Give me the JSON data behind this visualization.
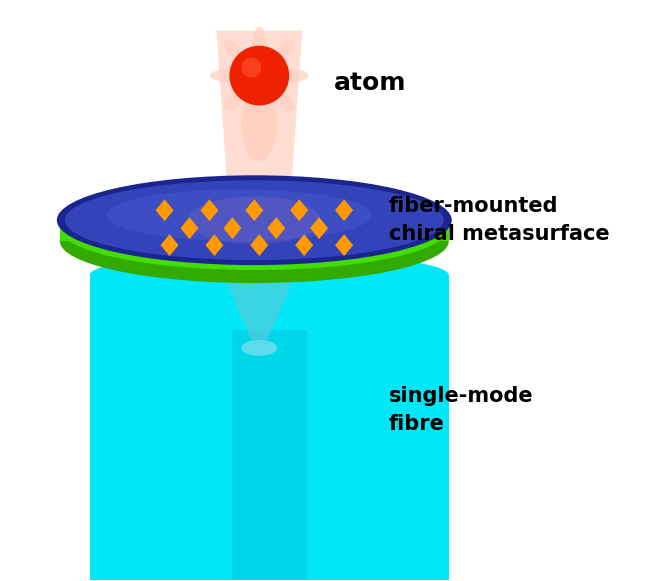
{
  "fig_width": 6.72,
  "fig_height": 5.81,
  "dpi": 100,
  "bg_color": "#ffffff",
  "fiber_color": "#00e8f8",
  "fiber_core_color": "#00c8e0",
  "disk_green_color": "#44dd00",
  "disk_green_dark": "#33aa00",
  "disk_blue_outer": "#2233aa",
  "disk_blue_mid": "#3344cc",
  "disk_blue_light": "#4455dd",
  "diamond_color": "#ff9900",
  "atom_body_color": "#ffd0c0",
  "atom_red_color": "#ee2200",
  "beam_pink_color": "#ffccbb",
  "beam_blue_color": "#88ddee",
  "label_atom": "atom",
  "label_fiber": "single-mode\nfibre",
  "label_meta": "fiber-mounted\nchiral metasurface",
  "font_size": 15,
  "font_weight": "bold"
}
